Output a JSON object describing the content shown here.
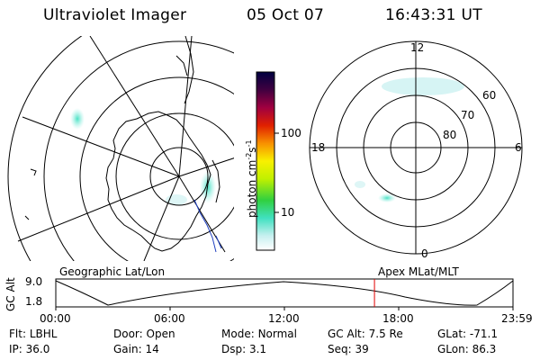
{
  "header": {
    "instrument": "Ultraviolet Imager",
    "date": "05 Oct 07",
    "time": "16:43:31 UT"
  },
  "colorbar": {
    "label": "photon cm",
    "label_sup1": "-2",
    "label_s": "s",
    "label_sup2": "-1",
    "ticks": [
      "100",
      "10"
    ]
  },
  "polar_plot": {
    "mlt_labels": {
      "top": "12",
      "left": "18",
      "right": "6",
      "bottom": "0"
    },
    "lat_labels": [
      "60",
      "70",
      "80"
    ]
  },
  "panels": {
    "left_title": "Geographic Lat/Lon",
    "right_title": "Apex MLat/MLT"
  },
  "altitude_strip": {
    "ylabel": "GC Alt",
    "ytick_top": "9.0",
    "ytick_bottom": "1.8",
    "time_ticks": [
      "00:00",
      "06:00",
      "12:00",
      "18:00",
      "23:59"
    ],
    "current_time_fraction": 0.697
  },
  "status": {
    "row1": [
      {
        "key": "Flt:",
        "val": "LBHL"
      },
      {
        "key": "Door:",
        "val": "Open"
      },
      {
        "key": "Mode:",
        "val": "Normal"
      },
      {
        "key": "GC Alt:",
        "val": "7.5 Re"
      },
      {
        "key": "GLat:",
        "val": "-71.1"
      }
    ],
    "row2": [
      {
        "key": "IP:",
        "val": "36.0"
      },
      {
        "key": "Gain:",
        "val": "14"
      },
      {
        "key": "Dsp:",
        "val": "3.1"
      },
      {
        "key": "Seq:",
        "val": "39"
      },
      {
        "key": "GLon:",
        "val": "86.3"
      }
    ]
  },
  "colors": {
    "auroral_emission": "#7fe8e0",
    "current_time_marker": "#e00000",
    "geomag_track": "#2040c0"
  }
}
